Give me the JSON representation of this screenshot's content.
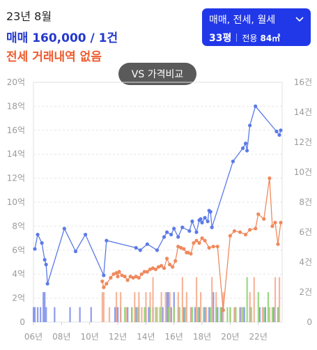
{
  "header": {
    "period": "23년 8월",
    "sale_price": "매매 160,000 / 1건",
    "jeonse_none": "전세 거래내역 없음"
  },
  "filter": {
    "types": "매매, 전세, 월세",
    "size": "33평",
    "area_label": "전용",
    "area_value": "84㎡"
  },
  "compare_button": "VS 가격비교",
  "colors": {
    "sale": "#5b7ae8",
    "jeonse": "#f0895c",
    "volume_sale": "#7a8ce8",
    "volume_jeonse": "#f3a98a",
    "volume_wolse": "#8bd36b",
    "accent": "#2138e8"
  },
  "chart_data": {
    "type": "line",
    "left_axis": {
      "ticks": [
        "20억",
        "18억",
        "16억",
        "14억",
        "12억",
        "10억",
        "8억",
        "6억",
        "4억",
        "2억",
        "0"
      ],
      "ylim": [
        0,
        20
      ]
    },
    "right_axis": {
      "ticks": [
        "16건",
        "14건",
        "12건",
        "10건",
        "8건",
        "6건",
        "4건",
        "2건",
        "0"
      ],
      "ylim": [
        0,
        16
      ]
    },
    "x_ticks": [
      "06년",
      "08년",
      "10년",
      "12년",
      "14년",
      "16년",
      "18년",
      "20년",
      "22년"
    ],
    "x_range": [
      2006.0,
      2023.7
    ],
    "series": [
      {
        "color": "#5b7ae8",
        "points": [
          [
            2006.1,
            6.1
          ],
          [
            2006.3,
            7.3
          ],
          [
            2006.6,
            6.6
          ],
          [
            2006.8,
            5.2
          ],
          [
            2006.9,
            4.8
          ],
          [
            2007.0,
            3.2
          ],
          [
            2008.2,
            7.8
          ],
          [
            2009.0,
            5.9
          ],
          [
            2009.7,
            7.3
          ],
          [
            2011.0,
            3.9
          ],
          [
            2011.2,
            6.8
          ],
          [
            2013.3,
            6.2
          ],
          [
            2013.6,
            6.0
          ],
          [
            2014.1,
            6.5
          ],
          [
            2014.8,
            6.0
          ],
          [
            2015.3,
            7.1
          ],
          [
            2015.5,
            7.5
          ],
          [
            2015.8,
            7.3
          ],
          [
            2016.0,
            7.8
          ],
          [
            2016.3,
            7.1
          ],
          [
            2016.6,
            7.9
          ],
          [
            2017.1,
            7.6
          ],
          [
            2017.3,
            8.4
          ],
          [
            2017.6,
            7.5
          ],
          [
            2017.8,
            8.5
          ],
          [
            2017.9,
            8.6
          ],
          [
            2018.0,
            8.3
          ],
          [
            2018.2,
            8.7
          ],
          [
            2018.4,
            8.4
          ],
          [
            2018.5,
            9.3
          ],
          [
            2018.6,
            9.2
          ],
          [
            2018.7,
            7.9
          ],
          [
            2020.2,
            13.4
          ],
          [
            2020.9,
            14.5
          ],
          [
            2021.1,
            14.9
          ],
          [
            2021.2,
            14.3
          ],
          [
            2021.4,
            16.4
          ],
          [
            2021.8,
            18.0
          ],
          [
            2023.3,
            15.9
          ],
          [
            2023.5,
            15.6
          ],
          [
            2023.6,
            16.0
          ]
        ]
      },
      {
        "color": "#f0895c",
        "points": [
          [
            2010.9,
            3.4
          ],
          [
            2011.0,
            2.9
          ],
          [
            2011.2,
            3.2
          ],
          [
            2011.5,
            3.7
          ],
          [
            2011.7,
            4.0
          ],
          [
            2011.9,
            4.1
          ],
          [
            2012.0,
            3.8
          ],
          [
            2012.1,
            4.2
          ],
          [
            2012.3,
            3.9
          ],
          [
            2012.5,
            3.8
          ],
          [
            2012.7,
            3.5
          ],
          [
            2012.9,
            3.8
          ],
          [
            2013.1,
            3.7
          ],
          [
            2013.3,
            3.8
          ],
          [
            2013.5,
            3.7
          ],
          [
            2013.7,
            4.0
          ],
          [
            2013.9,
            4.2
          ],
          [
            2014.1,
            4.2
          ],
          [
            2014.3,
            4.4
          ],
          [
            2014.5,
            4.5
          ],
          [
            2014.7,
            4.4
          ],
          [
            2014.9,
            4.6
          ],
          [
            2015.1,
            4.7
          ],
          [
            2015.3,
            4.5
          ],
          [
            2015.5,
            5.3
          ],
          [
            2015.7,
            4.8
          ],
          [
            2015.9,
            4.6
          ],
          [
            2016.1,
            5.1
          ],
          [
            2016.3,
            6.3
          ],
          [
            2016.5,
            6.2
          ],
          [
            2016.7,
            6.1
          ],
          [
            2016.9,
            5.8
          ],
          [
            2017.0,
            5.8
          ],
          [
            2017.2,
            5.7
          ],
          [
            2017.4,
            6.6
          ],
          [
            2017.6,
            6.8
          ],
          [
            2017.8,
            6.6
          ],
          [
            2018.0,
            7.0
          ],
          [
            2018.2,
            6.8
          ],
          [
            2018.5,
            6.2
          ],
          [
            2018.8,
            6.3
          ],
          [
            2019.1,
            6.3
          ],
          [
            2019.5,
            1.0
          ],
          [
            2020.0,
            7.2
          ],
          [
            2020.3,
            7.6
          ],
          [
            2020.7,
            7.5
          ],
          [
            2021.1,
            7.3
          ],
          [
            2021.4,
            7.7
          ],
          [
            2021.8,
            7.8
          ],
          [
            2022.0,
            9.0
          ],
          [
            2022.4,
            8.6
          ],
          [
            2022.8,
            12.0
          ],
          [
            2023.0,
            8.0
          ],
          [
            2023.2,
            8.3
          ],
          [
            2023.4,
            6.5
          ],
          [
            2023.6,
            8.3
          ]
        ]
      }
    ],
    "volume_bars": [
      {
        "color": "#7a8ce8",
        "points": [
          [
            2006.0,
            1
          ],
          [
            2006.1,
            1
          ],
          [
            2006.3,
            1
          ],
          [
            2006.5,
            1
          ],
          [
            2006.7,
            2
          ],
          [
            2006.8,
            2
          ],
          [
            2006.9,
            1
          ],
          [
            2007.5,
            1
          ],
          [
            2008.6,
            1
          ],
          [
            2009.3,
            1
          ],
          [
            2010.1,
            1
          ],
          [
            2011.8,
            1
          ],
          [
            2011.9,
            1
          ],
          [
            2012.0,
            1
          ],
          [
            2012.2,
            1
          ],
          [
            2012.7,
            1
          ],
          [
            2013.0,
            1
          ],
          [
            2013.3,
            1
          ],
          [
            2013.5,
            1
          ],
          [
            2014.0,
            1
          ],
          [
            2014.2,
            1
          ],
          [
            2014.5,
            1
          ],
          [
            2015.2,
            1
          ],
          [
            2015.5,
            2
          ],
          [
            2015.6,
            2
          ],
          [
            2015.8,
            1
          ],
          [
            2016.0,
            2
          ],
          [
            2016.3,
            1
          ],
          [
            2016.7,
            1
          ],
          [
            2017.2,
            1
          ],
          [
            2017.5,
            1
          ],
          [
            2017.8,
            1
          ],
          [
            2018.2,
            1
          ],
          [
            2018.5,
            1
          ],
          [
            2018.8,
            2
          ],
          [
            2019.1,
            1
          ],
          [
            2019.4,
            1
          ],
          [
            2020.3,
            1
          ],
          [
            2020.7,
            1
          ],
          [
            2021.0,
            1
          ],
          [
            2021.4,
            1
          ],
          [
            2022.1,
            1
          ],
          [
            2022.5,
            1
          ],
          [
            2023.1,
            1
          ],
          [
            2023.4,
            1
          ]
        ]
      },
      {
        "color": "#f3a98a",
        "points": [
          [
            2010.9,
            2
          ],
          [
            2011.0,
            2
          ],
          [
            2011.4,
            1
          ],
          [
            2011.9,
            2
          ],
          [
            2012.2,
            2
          ],
          [
            2012.6,
            1
          ],
          [
            2013.0,
            1
          ],
          [
            2013.2,
            2
          ],
          [
            2013.5,
            2
          ],
          [
            2013.7,
            1
          ],
          [
            2014.0,
            2
          ],
          [
            2014.3,
            2
          ],
          [
            2014.5,
            3
          ],
          [
            2014.8,
            1
          ],
          [
            2015.1,
            2
          ],
          [
            2015.4,
            2
          ],
          [
            2015.7,
            2
          ],
          [
            2016.0,
            1
          ],
          [
            2016.3,
            2
          ],
          [
            2016.6,
            3
          ],
          [
            2016.9,
            2
          ],
          [
            2017.2,
            1
          ],
          [
            2017.6,
            3
          ],
          [
            2017.9,
            2
          ],
          [
            2018.3,
            1
          ],
          [
            2018.7,
            3
          ],
          [
            2019.0,
            2
          ],
          [
            2019.5,
            2
          ],
          [
            2020.0,
            1
          ],
          [
            2020.3,
            1
          ],
          [
            2020.8,
            1
          ],
          [
            2021.4,
            2
          ],
          [
            2021.7,
            3
          ],
          [
            2022.3,
            1
          ],
          [
            2022.8,
            1
          ],
          [
            2023.2,
            3
          ],
          [
            2023.5,
            3
          ]
        ]
      },
      {
        "color": "#8bd36b",
        "points": [
          [
            2012.5,
            1
          ],
          [
            2013.0,
            1
          ],
          [
            2013.4,
            1
          ],
          [
            2013.9,
            1
          ],
          [
            2014.3,
            1
          ],
          [
            2014.7,
            1
          ],
          [
            2015.0,
            1
          ],
          [
            2015.6,
            1
          ],
          [
            2016.0,
            1
          ],
          [
            2016.4,
            1
          ],
          [
            2016.8,
            1
          ],
          [
            2017.3,
            1
          ],
          [
            2017.7,
            1
          ],
          [
            2018.1,
            1
          ],
          [
            2018.6,
            1
          ],
          [
            2019.0,
            1
          ],
          [
            2019.3,
            1
          ],
          [
            2019.8,
            1
          ],
          [
            2020.0,
            1
          ],
          [
            2020.4,
            1
          ],
          [
            2020.9,
            1
          ],
          [
            2021.2,
            3
          ],
          [
            2021.5,
            1
          ],
          [
            2022.0,
            2
          ],
          [
            2022.4,
            1
          ],
          [
            2022.7,
            2
          ],
          [
            2023.0,
            1
          ],
          [
            2023.4,
            1
          ]
        ]
      }
    ]
  }
}
